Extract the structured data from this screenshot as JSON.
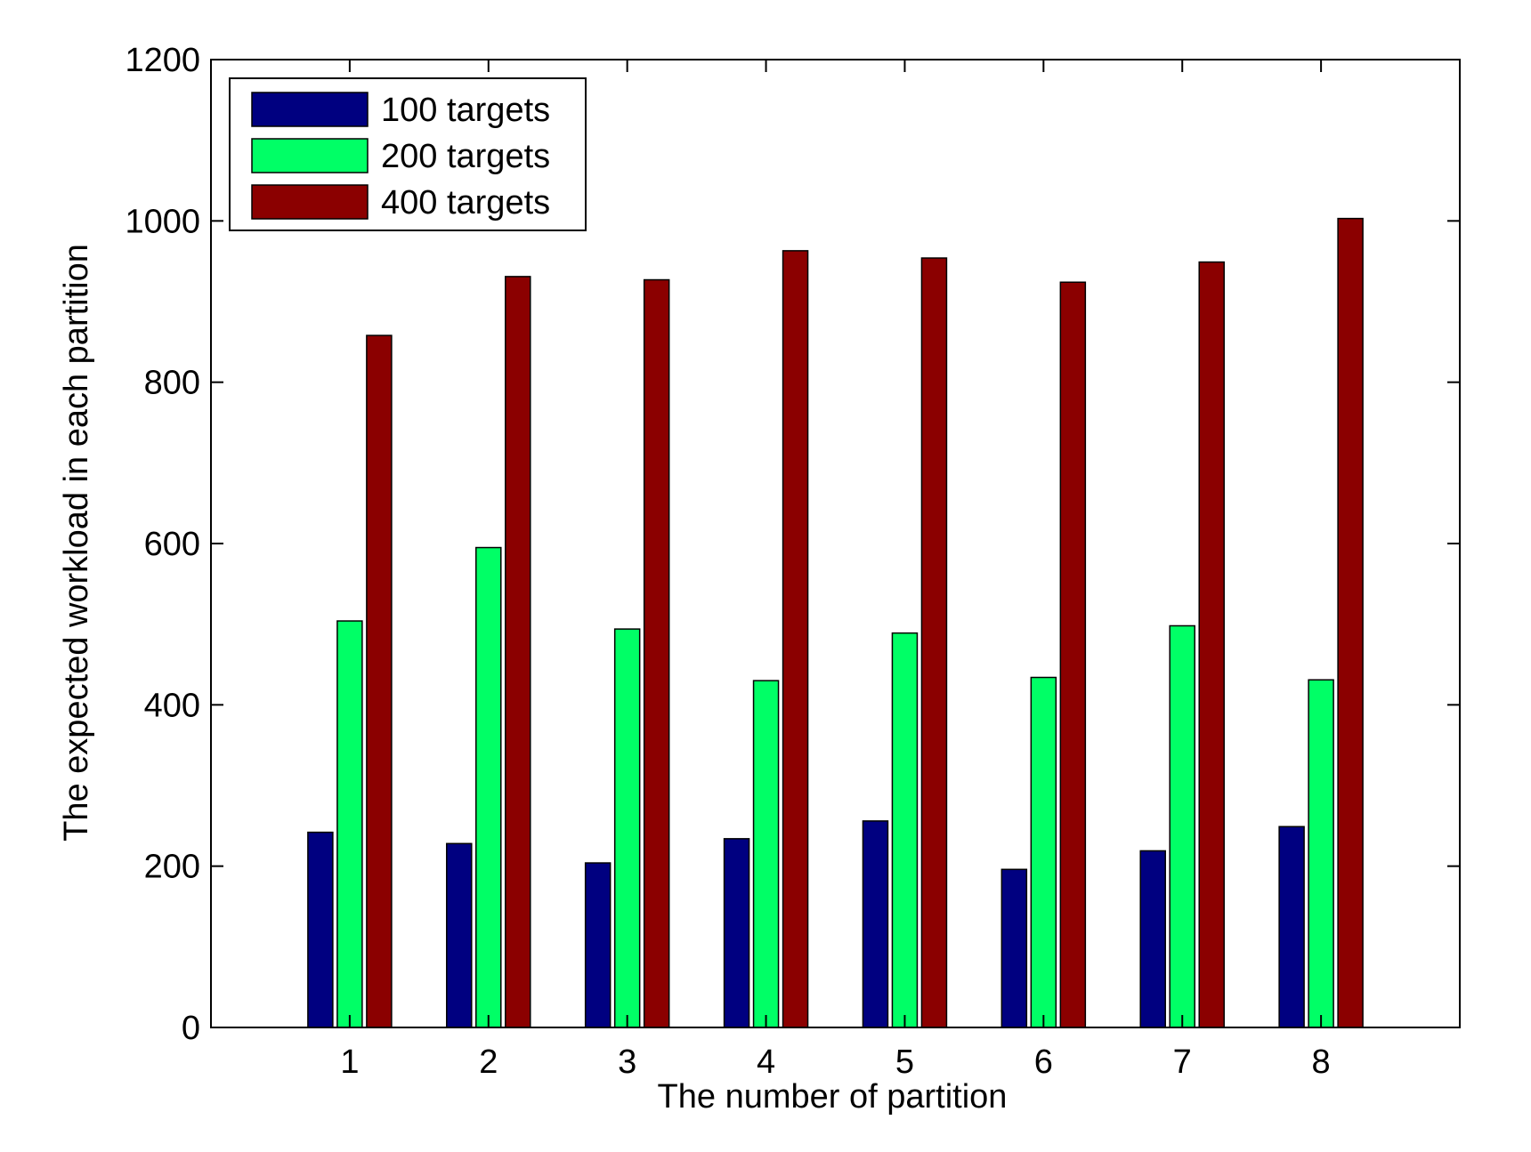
{
  "chart_data": {
    "type": "bar",
    "title": "",
    "xlabel": "The number of partition",
    "ylabel": "The expected workload in each partition",
    "categories": [
      "1",
      "2",
      "3",
      "4",
      "5",
      "6",
      "7",
      "8"
    ],
    "series": [
      {
        "name": "100 targets",
        "color": "#000080",
        "values": [
          242,
          228,
          204,
          234,
          256,
          196,
          219,
          249
        ]
      },
      {
        "name": "200 targets",
        "color": "#00FF66",
        "values": [
          504,
          595,
          494,
          430,
          489,
          434,
          498,
          431
        ]
      },
      {
        "name": "400 targets",
        "color": "#8B0000",
        "values": [
          858,
          931,
          927,
          963,
          954,
          924,
          949,
          1003
        ]
      }
    ],
    "ylim": [
      0,
      1200
    ],
    "yticks": [
      0,
      200,
      400,
      600,
      800,
      1000,
      1200
    ],
    "grid": false,
    "legend_position": "top-left"
  }
}
